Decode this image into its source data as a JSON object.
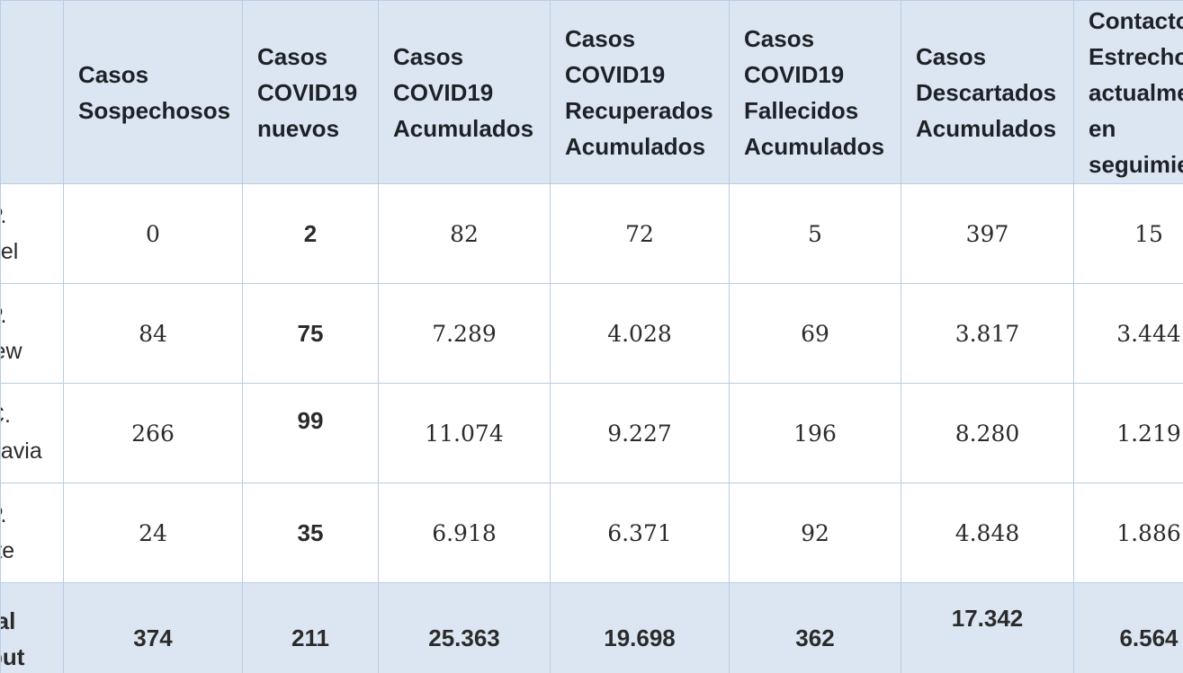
{
  "table": {
    "headers": [
      "",
      [
        "Casos",
        "Sospechosos"
      ],
      [
        "Casos",
        "COVID19",
        "nuevos"
      ],
      [
        "Casos",
        "COVID19",
        "Acumulados"
      ],
      [
        "Casos",
        "COVID19",
        "Recuperados",
        "Acumulados"
      ],
      [
        "Casos",
        "COVID19",
        "Fallecidos",
        "Acumulados"
      ],
      [
        "Casos",
        "Descartados",
        "Acumulados"
      ],
      [
        "Contacto",
        "Estrecho",
        "actualme",
        "en",
        "seguimie"
      ]
    ],
    "rows": [
      {
        "label": [
          "P.",
          "uel"
        ],
        "cells": [
          "0",
          "2",
          "82",
          "72",
          "5",
          "397",
          "15"
        ]
      },
      {
        "label": [
          "P.",
          "lew"
        ],
        "cells": [
          "84",
          "75",
          "7.289",
          "4.028",
          "69",
          "3.817",
          "3.444"
        ]
      },
      {
        "label": [
          "C.",
          "davia"
        ],
        "cells": [
          "266",
          "99",
          "11.074",
          "9.227",
          "196",
          "8.280",
          "1.219"
        ]
      },
      {
        "label": [
          "P.",
          "rte"
        ],
        "cells": [
          "24",
          "35",
          "6.918",
          "6.371",
          "92",
          "4.848",
          "1.886"
        ]
      }
    ],
    "total": {
      "label": [
        "tal",
        "but"
      ],
      "cells": [
        "374",
        "211",
        "25.363",
        "19.698",
        "362",
        "17.342",
        "6.564"
      ]
    }
  }
}
